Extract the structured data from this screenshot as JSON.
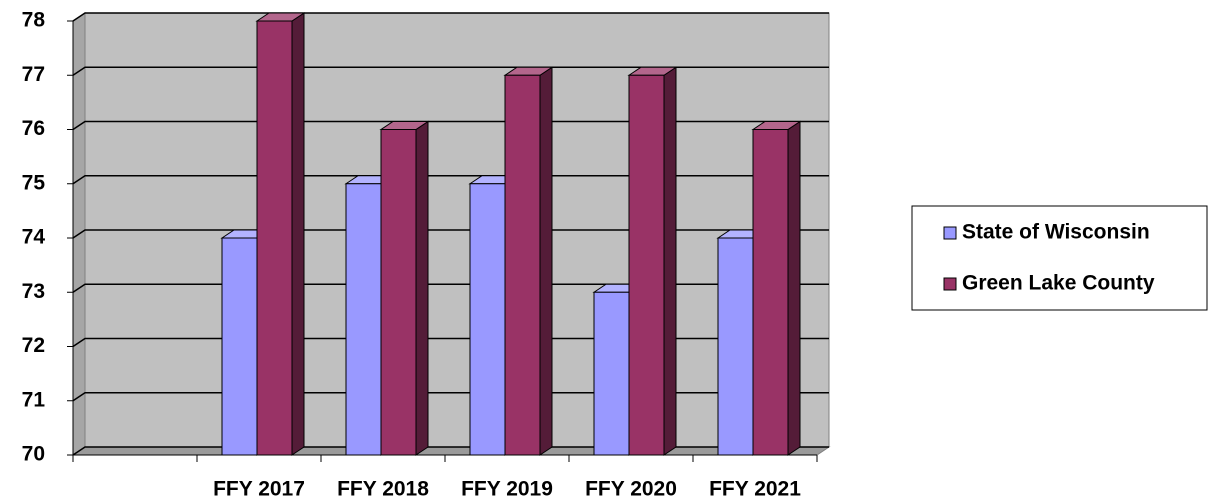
{
  "chart_data": {
    "type": "bar3d",
    "categories": [
      null,
      "FFY 2017",
      "FFY 2018",
      "FFY 2019",
      "FFY 2020",
      "FFY 2021"
    ],
    "series": [
      {
        "name": "State of Wisconsin",
        "color": "#9999ff",
        "values": [
          null,
          74,
          75,
          75,
          73,
          74
        ]
      },
      {
        "name": "Green Lake County",
        "color": "#993366",
        "values": [
          null,
          78,
          76,
          77,
          77,
          76
        ]
      }
    ],
    "ylim": [
      70,
      78
    ],
    "yticks": [
      70,
      71,
      72,
      73,
      74,
      75,
      76,
      77,
      78
    ],
    "grid": true,
    "legend": "right"
  }
}
